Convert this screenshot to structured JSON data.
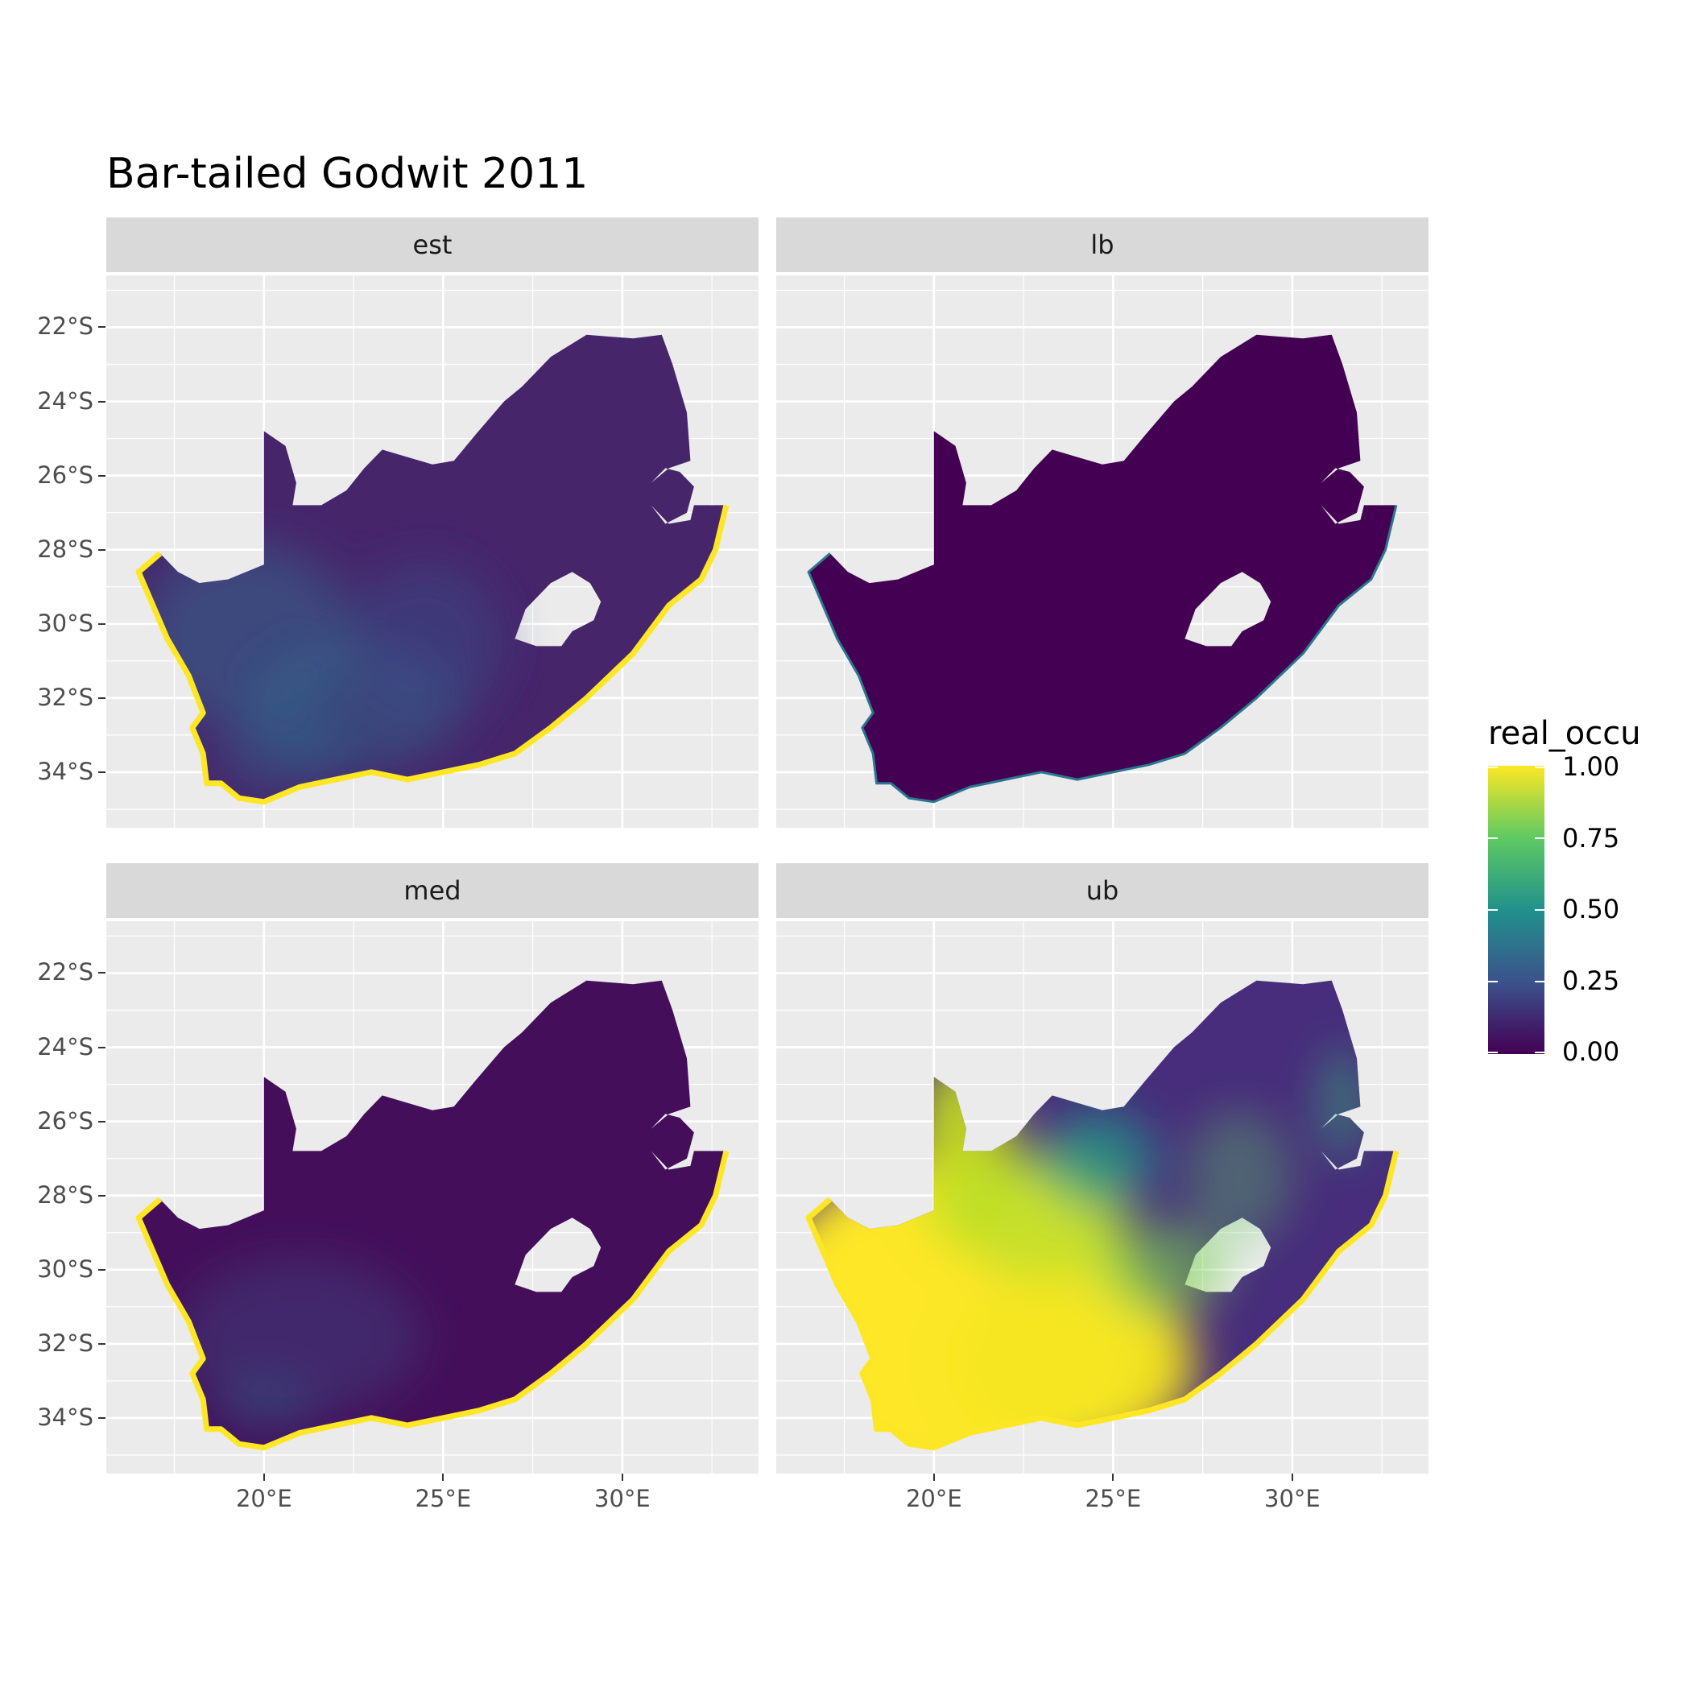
{
  "title": "Bar-tailed Godwit 2011",
  "legend": {
    "title": "real_occu",
    "labels": [
      "1.00",
      "0.75",
      "0.50",
      "0.25",
      "0.00"
    ],
    "colors": [
      "#fde725",
      "#5ec962",
      "#21918c",
      "#3b528b",
      "#440154"
    ]
  },
  "y_axis": {
    "labels": [
      "22°S",
      "24°S",
      "26°S",
      "28°S",
      "30°S",
      "32°S",
      "34°S"
    ],
    "values": [
      -22,
      -24,
      -26,
      -28,
      -30,
      -32,
      -34
    ]
  },
  "x_axis": {
    "labels": [
      "20°E",
      "25°E",
      "30°E"
    ],
    "values": [
      20,
      25,
      30
    ]
  },
  "chart_data": {
    "type": "heatmap",
    "title": "Bar-tailed Godwit 2011",
    "facets": [
      "est",
      "lb",
      "med",
      "ub"
    ],
    "fill_variable": "real_occu",
    "fill_range": [
      0,
      1
    ],
    "xlim": [
      15.6,
      33.8
    ],
    "ylim": [
      -35.5,
      -20.6
    ],
    "approx_panel_levels": {
      "est": "mostly 0.00–0.25 inland; higher (0.3–0.5) in western interior; ~1.00 along coast",
      "lb": "~0.00 throughout",
      "med": "~0.05–0.2 mostly; ~1.00 along coast",
      "ub": "~1.00 in western and central interior; 0.1–0.5 in north-east; ~1.00 along coast"
    }
  }
}
